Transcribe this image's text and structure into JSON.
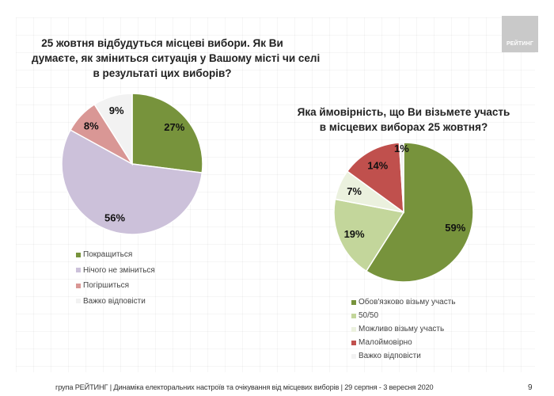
{
  "logo": {
    "text": "РЕЙТИНГ"
  },
  "footer": {
    "text": "група РЕЙТИНГ | Динаміка електоральних настроїв та очікування від місцевих виборів | 29 серпня - 3 вересня 2020",
    "page_number": "9"
  },
  "chart_data": [
    {
      "type": "pie",
      "title_lines": [
        "25 жовтня відбудуться місцеві вибори. Як Ви",
        "думаєте, як зміниться ситуація у Вашому місті чи селі",
        "в результаті цих виборів?"
      ],
      "start": "12 o'clock, clockwise",
      "legend_position": "bottom-left",
      "slices": [
        {
          "label": "Покращиться",
          "value": 27,
          "display": "27%",
          "color": "#77933c"
        },
        {
          "label": "Нічого не зміниться",
          "value": 56,
          "display": "56%",
          "color": "#ccc1da"
        },
        {
          "label": "Погіршиться",
          "value": 8,
          "display": "8%",
          "color": "#d99795"
        },
        {
          "label": "Важко відповісти",
          "value": 9,
          "display": "9%",
          "color": "#f2f2f2"
        }
      ]
    },
    {
      "type": "pie",
      "title_lines": [
        "Яка ймовірність, що Ви візьмете участь",
        "в місцевих виборах 25 жовтня?"
      ],
      "start": "12 o'clock, clockwise",
      "legend_position": "bottom-right",
      "slices": [
        {
          "label": "Обов'язково візьму участь",
          "value": 59,
          "display": "59%",
          "color": "#77933c"
        },
        {
          "label": "50/50",
          "value": 19,
          "display": "19%",
          "color": "#c3d69b"
        },
        {
          "label": "Можливо візьму участь",
          "value": 7,
          "display": "7%",
          "color": "#ebf1de"
        },
        {
          "label": "Малоймовірно",
          "value": 14,
          "display": "14%",
          "color": "#c0504d"
        },
        {
          "label": "Важко відповісти",
          "value": 1,
          "display": "1%",
          "color": "#f2f2f2"
        }
      ]
    }
  ]
}
